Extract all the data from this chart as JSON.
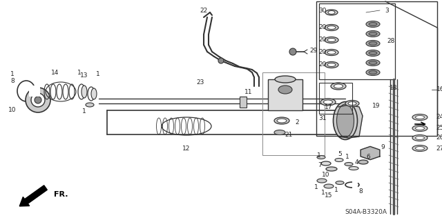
{
  "bg_color": "#ffffff",
  "diagram_code": "S04A-B3320A",
  "lc": "#333333",
  "tc": "#222222"
}
